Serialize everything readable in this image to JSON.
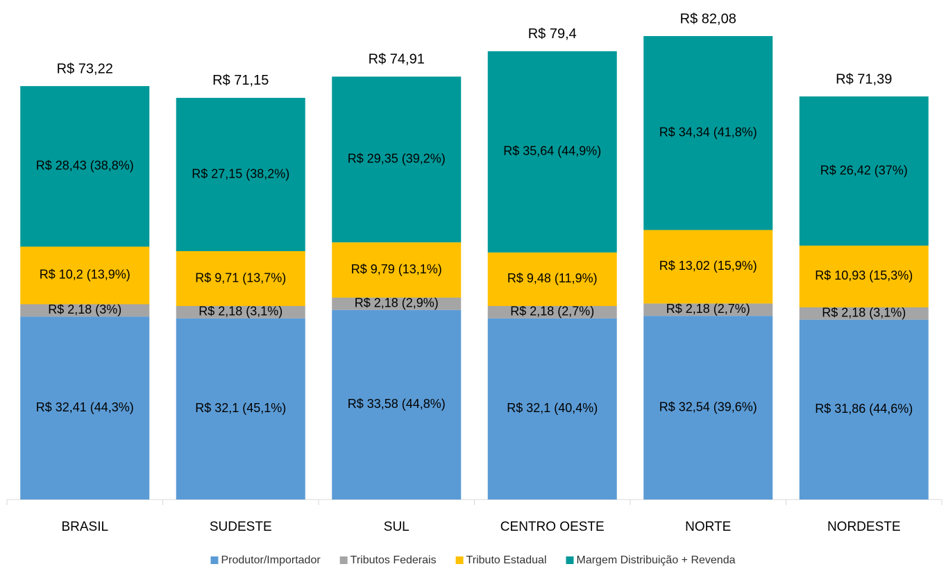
{
  "chart_data": {
    "type": "stacked_bar",
    "categories": [
      "BRASIL",
      "SUDESTE",
      "SUL",
      "CENTRO OESTE",
      "NORTE",
      "NORDESTE"
    ],
    "series": [
      {
        "name": "Produtor/Importador",
        "color": "#5b9bd5",
        "values": [
          32.41,
          32.1,
          33.58,
          32.1,
          32.54,
          31.86
        ],
        "value_labels": [
          "R$ 32,41 (44,3%)",
          "R$ 32,1 (45,1%)",
          "R$ 33,58 (44,8%)",
          "R$ 32,1 (40,4%)",
          "R$ 32,54 (39,6%)",
          "R$ 31,86 (44,6%)"
        ]
      },
      {
        "name": "Tributos Federais",
        "color": "#a5a5a5",
        "values": [
          2.18,
          2.18,
          2.18,
          2.18,
          2.18,
          2.18
        ],
        "value_labels": [
          "R$ 2,18 (3%)",
          "R$ 2,18 (3,1%)",
          "R$ 2,18 (2,9%)",
          "R$ 2,18 (2,7%)",
          "R$ 2,18 (2,7%)",
          "R$ 2,18 (3,1%)"
        ]
      },
      {
        "name": "Tributo Estadual",
        "color": "#ffc000",
        "values": [
          10.2,
          9.71,
          9.79,
          9.48,
          13.02,
          10.93
        ],
        "value_labels": [
          "R$ 10,2 (13,9%)",
          "R$ 9,71 (13,7%)",
          "R$ 9,79 (13,1%)",
          "R$ 9,48 (11,9%)",
          "R$ 13,02 (15,9%)",
          "R$ 10,93 (15,3%)"
        ]
      },
      {
        "name": "Margem Distribuição + Revenda",
        "color": "#009999",
        "values": [
          28.43,
          27.15,
          29.35,
          35.64,
          34.34,
          26.42
        ],
        "value_labels": [
          "R$ 28,43 (38,8%)",
          "R$ 27,15 (38,2%)",
          "R$ 29,35 (39,2%)",
          "R$ 35,64 (44,9%)",
          "R$ 34,34 (41,8%)",
          "R$ 26,42 (37%)"
        ]
      }
    ],
    "totals": {
      "values": [
        73.22,
        71.15,
        74.91,
        79.4,
        82.08,
        71.39
      ],
      "value_labels": [
        "R$ 73,22",
        "R$ 71,15",
        "R$ 74,91",
        "R$ 79,4",
        "R$ 82,08",
        "R$ 71,39"
      ]
    },
    "legend": "bottom"
  }
}
